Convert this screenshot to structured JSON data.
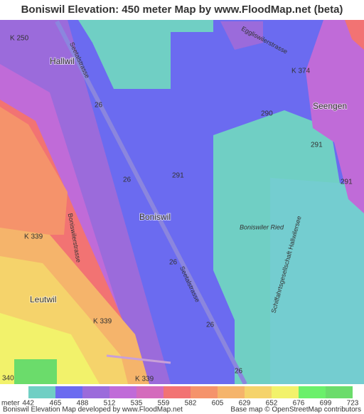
{
  "title": "Boniswil Elevation: 450 meter Map by www.FloodMap.net (beta)",
  "map": {
    "labels": [
      "K 250",
      "Hallwil",
      "Seetalstrasse",
      "Eggliswilerstrasse",
      "K 374",
      "26",
      "290",
      "Seengen",
      "291",
      "26",
      "291",
      "291",
      "Boniswil",
      "K 339",
      "Boniswilerstrasse",
      "Boniswiler Ried",
      "26",
      "Seetalstrasse",
      "Schiffahrtsgesellschaft Hallwilersee",
      "Leutwil",
      "K 339",
      "26",
      "340",
      "K 339",
      "26"
    ]
  },
  "legend": {
    "unit": "meter",
    "values": [
      442,
      465,
      488,
      512,
      535,
      559,
      582,
      605,
      629,
      652,
      676,
      699,
      723
    ],
    "colors": [
      "#70cfc4",
      "#6b6bf0",
      "#9b6bdb",
      "#c06bd8",
      "#d46bbc",
      "#f27373",
      "#f5936b",
      "#f5b46b",
      "#f5d36b",
      "#f2f26b",
      "#6bf06b",
      "#6bdc6b"
    ]
  },
  "footer": {
    "left": "Boniswil Elevation Map developed by www.FloodMap.net",
    "right": "Base map © OpenStreetMap contributors"
  }
}
